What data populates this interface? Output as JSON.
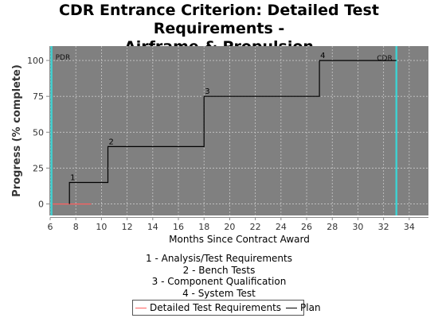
{
  "chart_data": {
    "type": "line",
    "title": [
      "CDR Entrance Criterion: Detailed Test Requirements -",
      "Airframe & Propulsion"
    ],
    "xlabel": "Months Since Contract Award",
    "ylabel": "Progress (% complete)",
    "xlim": [
      6,
      35.5
    ],
    "ylim": [
      -8,
      110
    ],
    "xticks": [
      6,
      8,
      10,
      12,
      14,
      16,
      18,
      20,
      22,
      24,
      26,
      28,
      30,
      32,
      34
    ],
    "yticks": [
      0,
      25,
      50,
      75,
      100
    ],
    "grid": true,
    "plot_background": "#808080",
    "series": [
      {
        "name": "Detailed Test Requirements",
        "color": "#ff6060",
        "points": [
          [
            6.2,
            0
          ],
          [
            9.2,
            0
          ]
        ]
      },
      {
        "name": "Plan",
        "color": "#000000",
        "step": true,
        "points": [
          [
            7.5,
            0
          ],
          [
            7.5,
            15
          ],
          [
            10.5,
            15
          ],
          [
            10.5,
            40
          ],
          [
            18,
            40
          ],
          [
            18,
            75
          ],
          [
            27,
            75
          ],
          [
            27,
            100
          ],
          [
            33,
            100
          ]
        ]
      }
    ],
    "milestone_markers": [
      {
        "label": "1",
        "x": 7.5,
        "y": 15
      },
      {
        "label": "2",
        "x": 10.5,
        "y": 40
      },
      {
        "label": "3",
        "x": 18,
        "y": 75
      },
      {
        "label": "4",
        "x": 27,
        "y": 100
      }
    ],
    "reference_lines": [
      {
        "label": "PDR",
        "x": 6.1,
        "color": "#40d0d0"
      },
      {
        "label": "CDR",
        "x": 33,
        "color": "#40d0d0"
      }
    ],
    "milestones": [
      "1 - Analysis/Test Requirements",
      "2 - Bench Tests",
      "3 - Component Qualification",
      "4 - System Test"
    ],
    "legend_position": "bottom"
  }
}
